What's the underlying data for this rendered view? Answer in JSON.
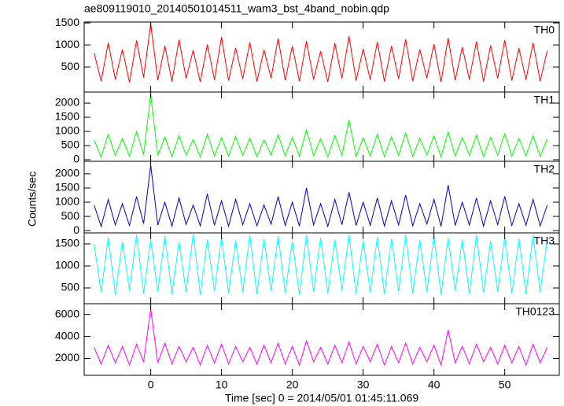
{
  "chart_data": {
    "type": "line",
    "title": "ae809119010_20140501014511_wam3_bst_4band_nobin.qdp",
    "xlabel": "Time [sec] 0 = 2014/05/01 01:45:11.069",
    "ylabel": "Counts/sec",
    "xlim": [
      -9.4,
      57.7
    ],
    "xticks": [
      0,
      10,
      20,
      30,
      40,
      50
    ],
    "x": [
      -8,
      -7,
      -6,
      -5,
      -4,
      -3,
      -2,
      -1,
      0,
      1,
      2,
      3,
      4,
      5,
      6,
      7,
      8,
      9,
      10,
      11,
      12,
      13,
      14,
      15,
      16,
      17,
      18,
      19,
      20,
      21,
      22,
      23,
      24,
      25,
      26,
      27,
      28,
      29,
      30,
      31,
      32,
      33,
      34,
      35,
      36,
      37,
      38,
      39,
      40,
      41,
      42,
      43,
      44,
      45,
      46,
      47,
      48,
      49,
      50,
      51,
      52,
      53,
      54,
      55,
      56
    ],
    "panels": [
      {
        "name": "TH0",
        "color": "#ff0000",
        "ylim": [
          -70,
          1520
        ],
        "yticks": [
          500,
          1000,
          1500
        ],
        "values": [
          820,
          180,
          1050,
          220,
          900,
          150,
          1100,
          260,
          1480,
          200,
          980,
          170,
          1120,
          240,
          880,
          160,
          1010,
          210,
          1180,
          190,
          930,
          230,
          1060,
          170,
          890,
          250,
          1150,
          200,
          970,
          180,
          1090,
          220,
          860,
          160,
          1040,
          240,
          1200,
          190,
          910,
          210,
          1070,
          170,
          980,
          230,
          1130,
          180,
          900,
          250,
          1020,
          160,
          1160,
          200,
          950,
          220,
          1080,
          170,
          990,
          240,
          1110,
          190,
          930,
          210,
          1050,
          180,
          870
        ]
      },
      {
        "name": "TH1",
        "color": "#00ff00",
        "ylim": [
          -55,
          2390
        ],
        "yticks": [
          0,
          500,
          1000,
          1500,
          2000
        ],
        "values": [
          700,
          100,
          900,
          150,
          750,
          120,
          1000,
          180,
          2300,
          150,
          800,
          110,
          850,
          160,
          720,
          100,
          900,
          140,
          780,
          120,
          820,
          150,
          760,
          110,
          700,
          170,
          880,
          130,
          790,
          120,
          1050,
          150,
          740,
          100,
          860,
          160,
          1400,
          130,
          770,
          140,
          900,
          110,
          810,
          150,
          950,
          120,
          760,
          170,
          840,
          100,
          980,
          130,
          790,
          150,
          870,
          110,
          800,
          160,
          920,
          130,
          760,
          140,
          850,
          120,
          730
        ]
      },
      {
        "name": "TH2",
        "color": "#0000cc",
        "ylim": [
          -80,
          2440
        ],
        "yticks": [
          0,
          500,
          1000,
          1500,
          2000
        ],
        "values": [
          900,
          150,
          1100,
          200,
          950,
          180,
          1200,
          250,
          2300,
          200,
          1000,
          160,
          1150,
          220,
          900,
          170,
          1300,
          190,
          1050,
          160,
          1100,
          210,
          950,
          170,
          900,
          230,
          1200,
          180,
          1000,
          160,
          1500,
          200,
          950,
          150,
          1100,
          210,
          1350,
          180,
          1000,
          190,
          1150,
          160,
          1050,
          200,
          1250,
          170,
          950,
          230,
          1100,
          150,
          1600,
          180,
          1000,
          200,
          1150,
          160,
          1050,
          210,
          1200,
          180,
          950,
          190,
          1100,
          170,
          900
        ]
      },
      {
        "name": "TH3",
        "color": "#00ffff",
        "ylim": [
          143,
          1750
        ],
        "yticks": [
          500,
          1000,
          1500
        ],
        "values": [
          1500,
          400,
          1650,
          350,
          1550,
          450,
          1700,
          380,
          1600,
          420,
          1680,
          360,
          1550,
          400,
          1720,
          350,
          1600,
          440,
          1650,
          380,
          1580,
          410,
          1700,
          360,
          1620,
          430,
          1680,
          390,
          1560,
          350,
          1700,
          420,
          1640,
          380,
          1600,
          450,
          1720,
          370,
          1580,
          400,
          1660,
          360,
          1620,
          430,
          1700,
          380,
          1590,
          410,
          1680,
          350,
          1640,
          440,
          1600,
          370,
          1700,
          400,
          1560,
          420,
          1660,
          380,
          1620,
          360,
          1700,
          410,
          1580
        ]
      },
      {
        "name": "TH0123",
        "color": "#ff00ff",
        "ylim": [
          460,
          6980
        ],
        "yticks": [
          2000,
          4000,
          6000
        ],
        "values": [
          3000,
          1500,
          3200,
          1600,
          3100,
          1400,
          3300,
          1700,
          6500,
          1600,
          3400,
          1500,
          3100,
          1700,
          3000,
          1400,
          3200,
          1600,
          3300,
          1500,
          3100,
          1700,
          3000,
          1500,
          3200,
          1600,
          3400,
          1500,
          3100,
          1400,
          3600,
          1700,
          3000,
          1500,
          3200,
          1600,
          3500,
          1500,
          3100,
          1700,
          3300,
          1400,
          3100,
          1600,
          3400,
          1500,
          3000,
          1700,
          3200,
          1400,
          4600,
          1600,
          3100,
          1500,
          3300,
          1700,
          3000,
          1500,
          3200,
          1600,
          3100,
          1400,
          3300,
          1600,
          3000
        ]
      }
    ]
  }
}
